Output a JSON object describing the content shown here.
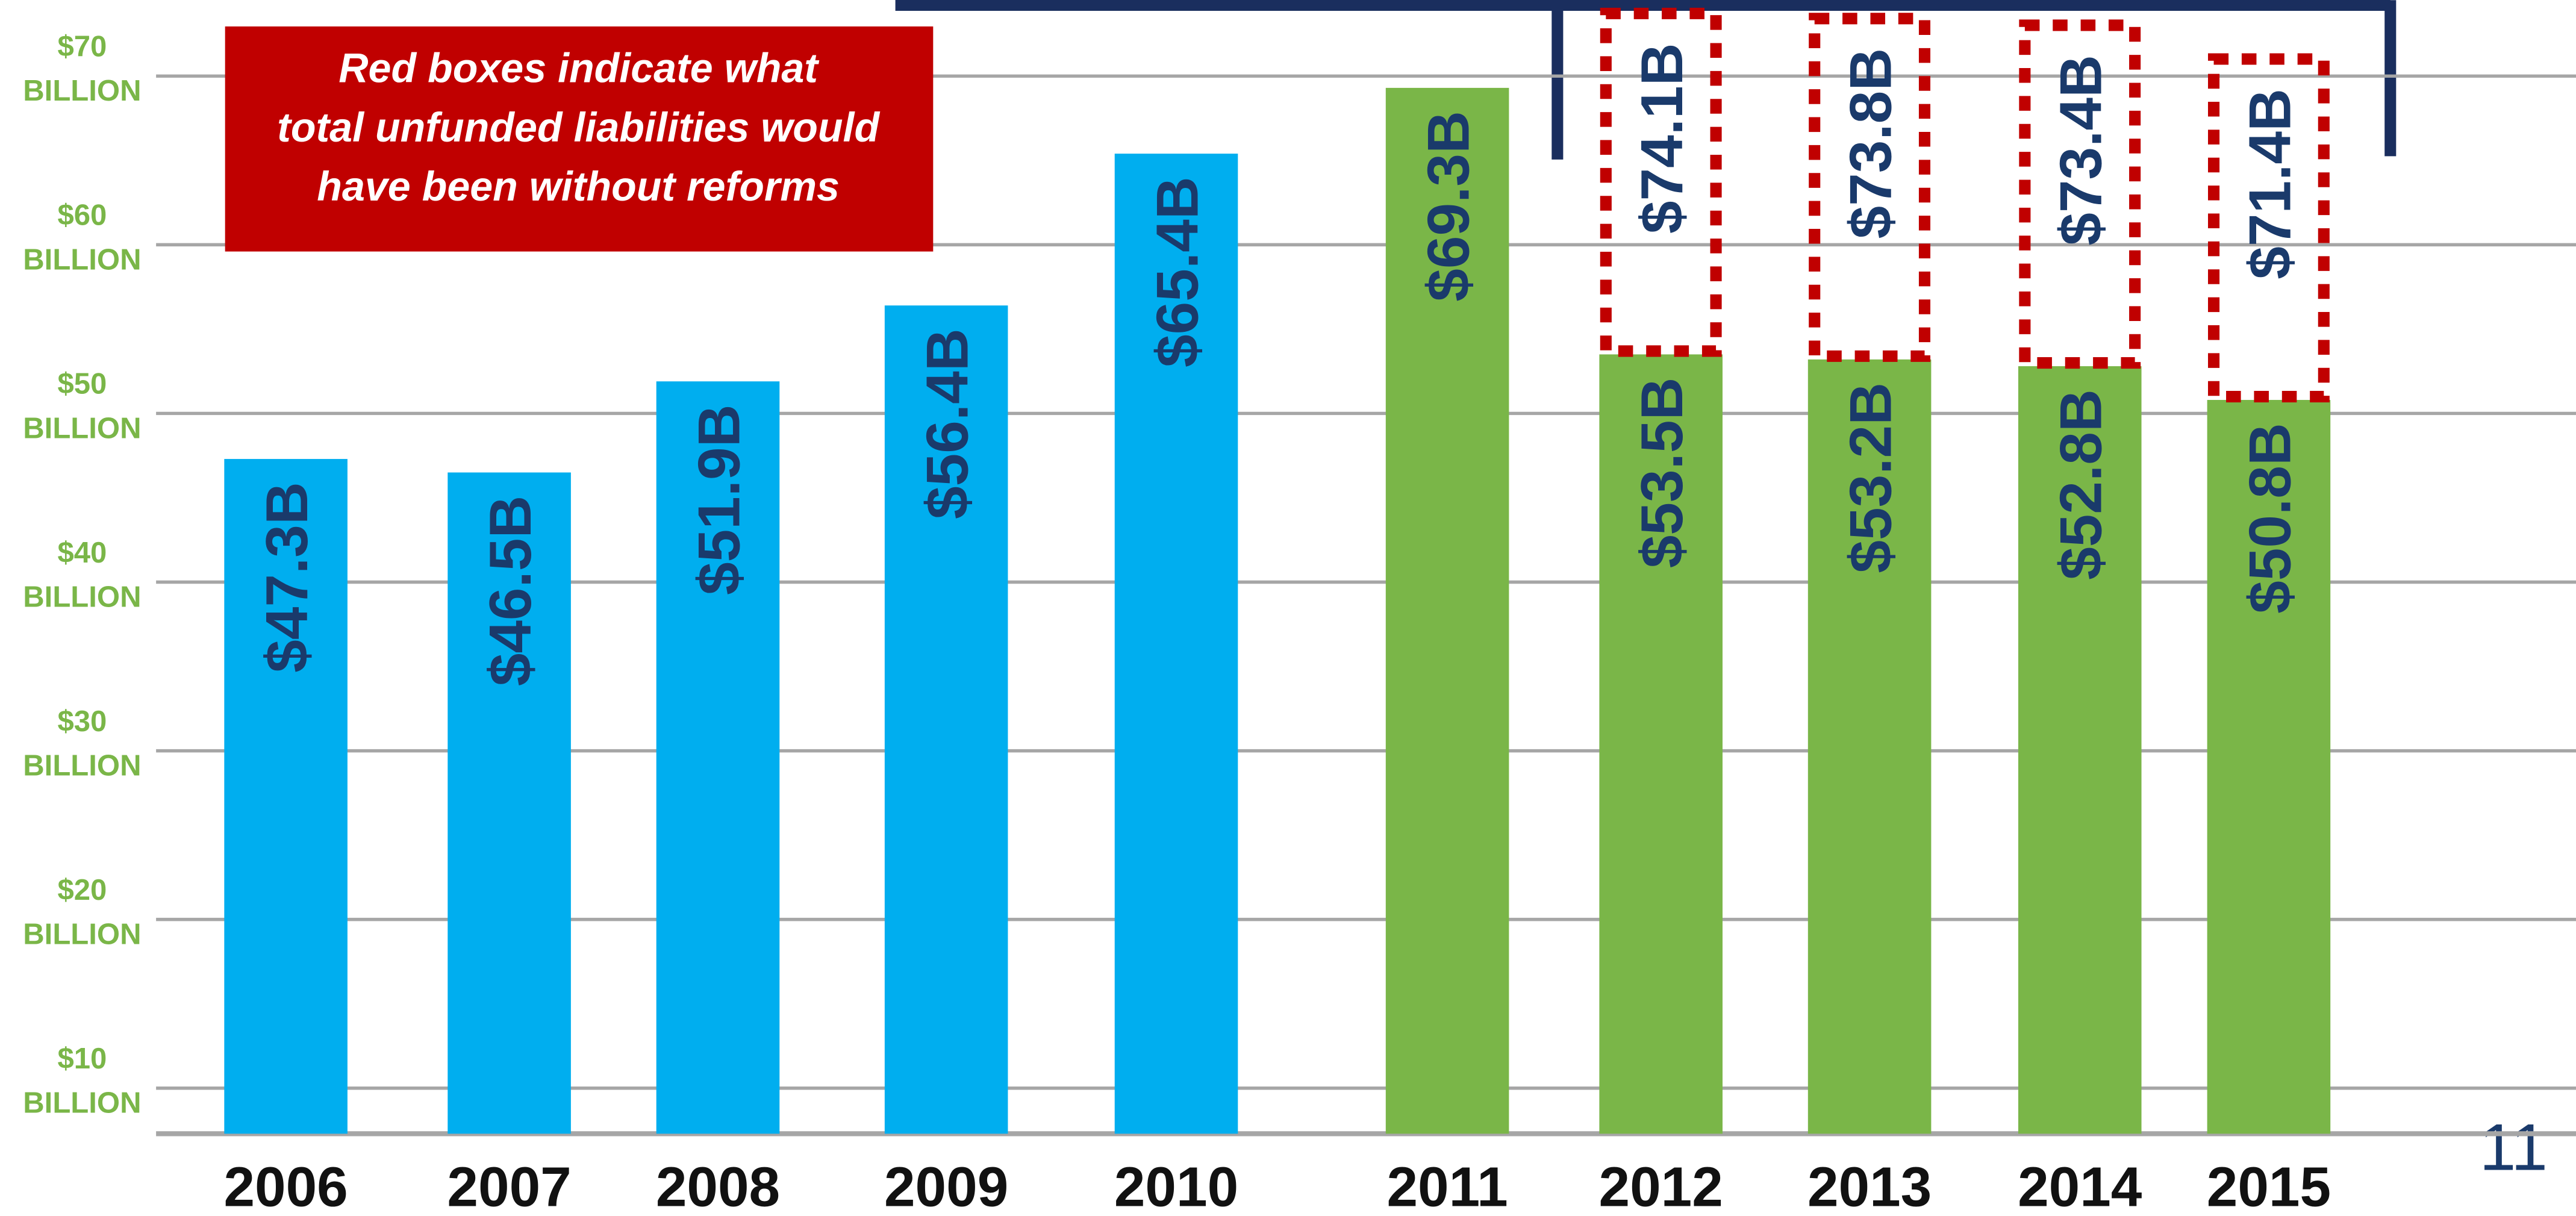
{
  "chart_data": {
    "type": "bar",
    "annotation": [
      "Red boxes indicate what",
      "total unfunded liabilities would",
      "have been without reforms"
    ],
    "categories": [
      "2006",
      "2007",
      "2008",
      "2009",
      "2010",
      "2011",
      "2012",
      "2013",
      "2014",
      "2015"
    ],
    "values": [
      47.3,
      46.5,
      51.9,
      56.4,
      65.4,
      69.3,
      53.5,
      53.2,
      52.8,
      50.8
    ],
    "value_labels": [
      "$47.3B",
      "$46.5B",
      "$51.9B",
      "$56.4B",
      "$65.4B",
      "$69.3B",
      "$53.5B",
      "$53.2B",
      "$52.8B",
      "$50.8B"
    ],
    "colors": [
      "#00aeef",
      "#00aeef",
      "#00aeef",
      "#00aeef",
      "#00aeef",
      "#7ab648",
      "#7ab648",
      "#7ab648",
      "#7ab648",
      "#7ab648"
    ],
    "unreformed_values": [
      null,
      null,
      null,
      null,
      null,
      null,
      74.1,
      73.8,
      73.4,
      71.4
    ],
    "unreformed_value_labels": [
      null,
      null,
      null,
      null,
      null,
      null,
      "$74.1B",
      "$73.8B",
      "$73.4B",
      "$71.4B"
    ],
    "unreformed_color": "#c00000",
    "ylim": [
      7.3,
      74.5
    ],
    "yticks": [
      {
        "value": 10,
        "label": "$10 BILLION"
      },
      {
        "value": 20,
        "label": "$20 BILLION"
      },
      {
        "value": 30,
        "label": "$30 BILLION"
      },
      {
        "value": 40,
        "label": "$40 BILLION"
      },
      {
        "value": 50,
        "label": "$50 BILLION"
      },
      {
        "value": 60,
        "label": "$60 BILLION"
      },
      {
        "value": 70,
        "label": "$70 BILLION"
      }
    ],
    "grid": true
  },
  "slide_number": "11"
}
